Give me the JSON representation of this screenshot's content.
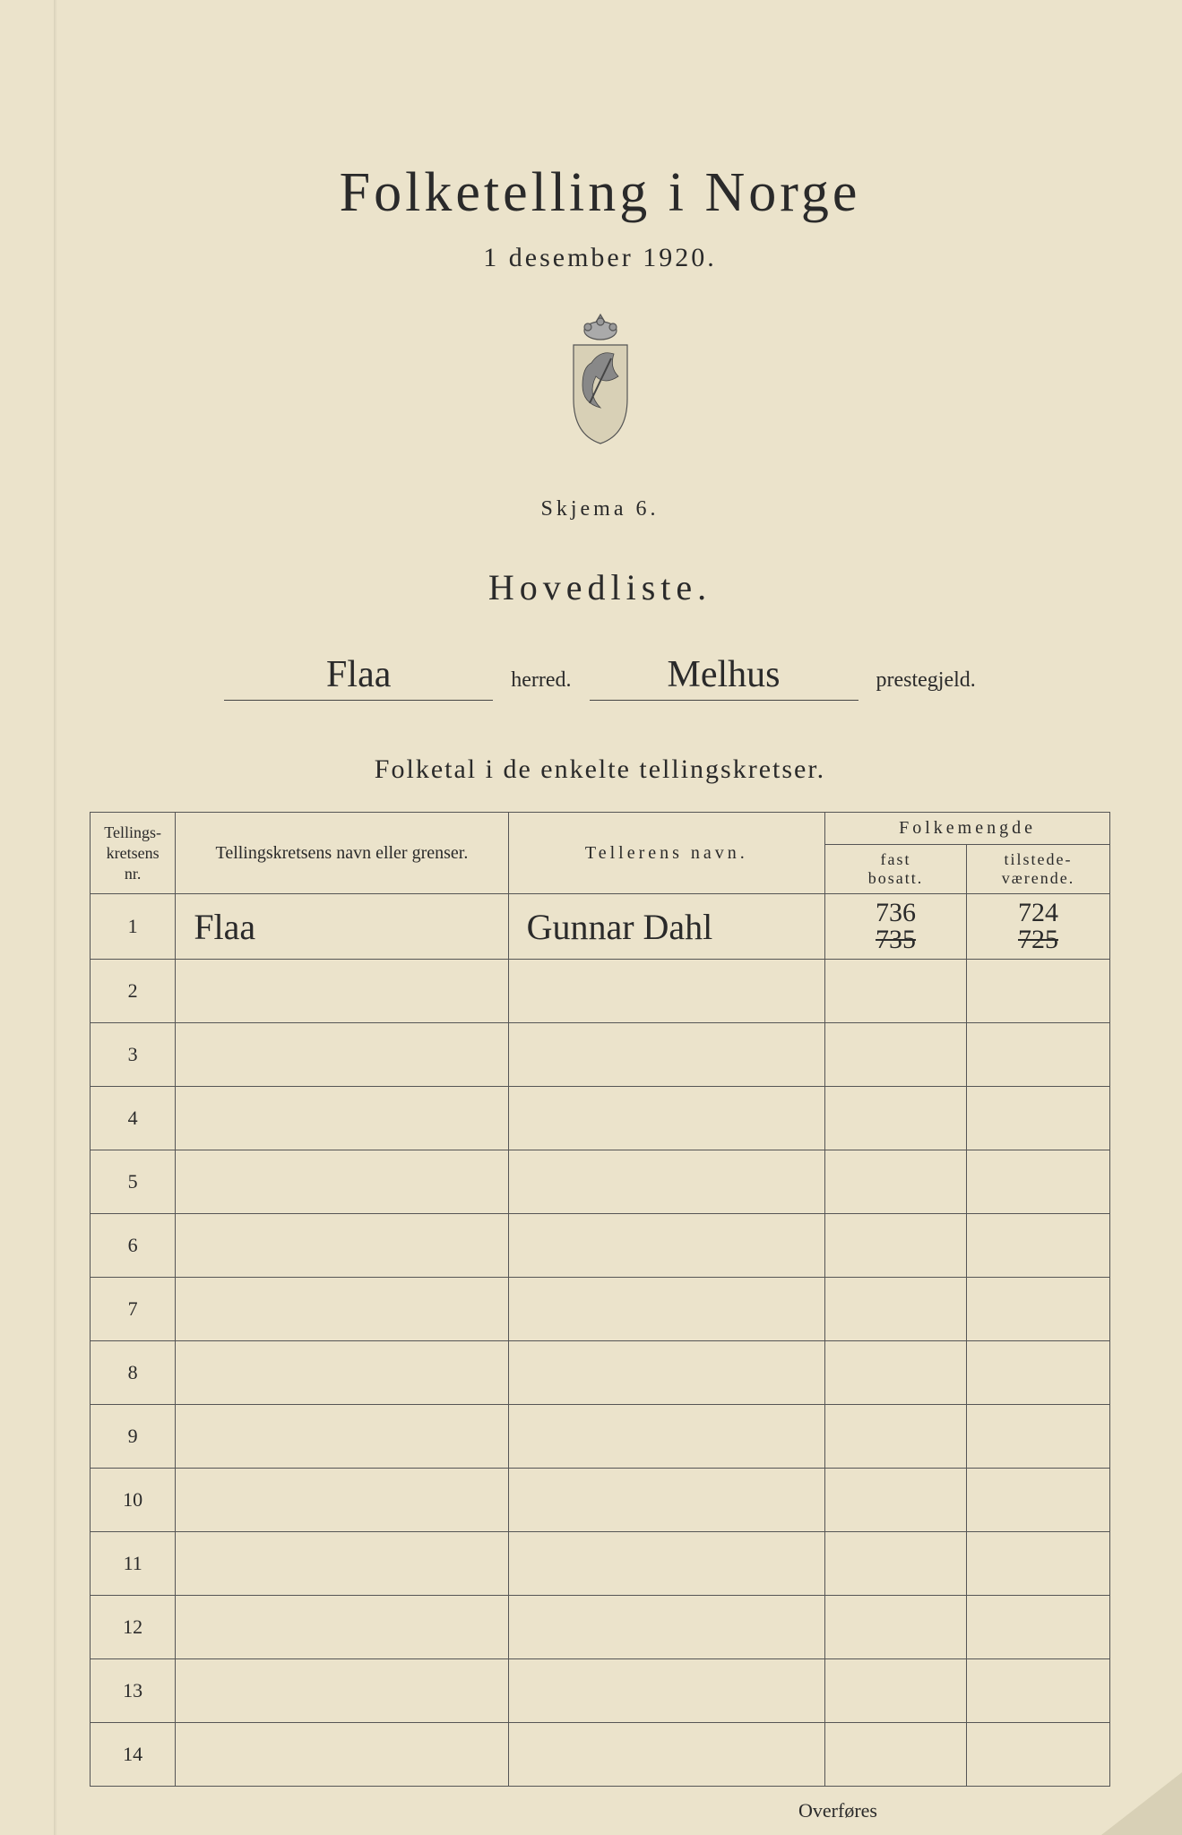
{
  "title": "Folketelling i Norge",
  "date": "1 desember 1920.",
  "form_label": "Skjema 6.",
  "list_label": "Hovedliste.",
  "herred_value": "Flaa",
  "herred_label": "herred.",
  "prestegjeld_value": "Melhus",
  "prestegjeld_label": "prestegjeld.",
  "subtitle": "Folketal i de enkelte tellingskretser.",
  "columns": {
    "nr": "Tellings-\nkretsens\nnr.",
    "navn": "Tellingskretsens navn eller grenser.",
    "teller": "Tellerens navn.",
    "folkemengde": "Folkemengde",
    "fast": "fast\nbosatt.",
    "tilstede": "tilstede-\nværende."
  },
  "rows": [
    {
      "nr": "1",
      "navn": "Flaa",
      "teller": "Gunnar Dahl",
      "fast_corr": "736",
      "fast_old": "735",
      "til_corr": "724",
      "til_old": "725"
    },
    {
      "nr": "2"
    },
    {
      "nr": "3"
    },
    {
      "nr": "4"
    },
    {
      "nr": "5"
    },
    {
      "nr": "6"
    },
    {
      "nr": "7"
    },
    {
      "nr": "8"
    },
    {
      "nr": "9"
    },
    {
      "nr": "10"
    },
    {
      "nr": "11"
    },
    {
      "nr": "12"
    },
    {
      "nr": "13"
    },
    {
      "nr": "14"
    }
  ],
  "overfores": "Overføres",
  "colors": {
    "paper": "#ebe3cb",
    "ink": "#2a2a2a",
    "border": "#555"
  }
}
